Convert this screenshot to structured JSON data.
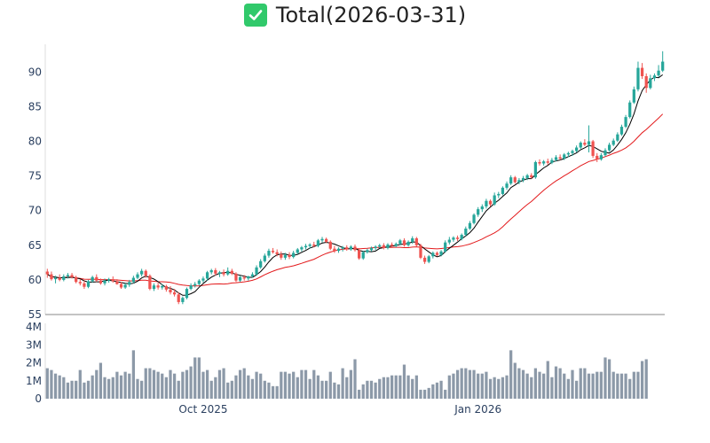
{
  "title": "Total(2026-03-31)",
  "title_icon": "check-mark-icon",
  "colors": {
    "up": "#26a69a",
    "down": "#ef5350",
    "ma_short": "#000000",
    "ma_long": "#e31a1c",
    "volume": "#8c99a8",
    "check_bg": "#31c96b"
  },
  "chart_data": [
    {
      "type": "candlestick",
      "title": "Total(2026-03-31)",
      "ylim": [
        55,
        94
      ],
      "yticks": [
        55,
        60,
        65,
        70,
        75,
        80,
        85,
        90
      ],
      "grid": false,
      "note": "daily OHLC, 151 sessions Aug 2025 – Mar 2026, with two moving averages",
      "ohlc": [
        [
          61.2,
          61.6,
          60.3,
          60.8
        ],
        [
          60.8,
          61.2,
          59.9,
          60.1
        ],
        [
          60.1,
          60.6,
          59.5,
          60.3
        ],
        [
          60.3,
          60.8,
          59.8,
          60.0
        ],
        [
          60.0,
          60.8,
          59.8,
          60.5
        ],
        [
          60.5,
          61.0,
          60.2,
          60.7
        ],
        [
          60.7,
          61.0,
          60.2,
          60.4
        ],
        [
          60.4,
          60.6,
          59.5,
          59.7
        ],
        [
          59.7,
          60.1,
          59.2,
          59.5
        ],
        [
          59.5,
          59.9,
          58.7,
          59.0
        ],
        [
          59.0,
          60.0,
          58.8,
          59.8
        ],
        [
          59.8,
          60.6,
          59.6,
          60.4
        ],
        [
          60.4,
          60.8,
          59.7,
          59.9
        ],
        [
          59.9,
          60.2,
          59.3,
          59.5
        ],
        [
          59.5,
          60.2,
          59.2,
          59.9
        ],
        [
          59.9,
          60.3,
          59.6,
          60.1
        ],
        [
          60.1,
          60.5,
          59.6,
          59.8
        ],
        [
          59.8,
          60.1,
          59.3,
          59.4
        ],
        [
          59.4,
          59.7,
          58.7,
          58.9
        ],
        [
          58.9,
          59.5,
          58.7,
          59.3
        ],
        [
          59.3,
          60.0,
          59.0,
          59.7
        ],
        [
          59.7,
          60.6,
          59.5,
          60.3
        ],
        [
          60.3,
          61.1,
          60.1,
          60.8
        ],
        [
          60.8,
          61.6,
          60.5,
          61.3
        ],
        [
          61.3,
          61.5,
          60.3,
          60.6
        ],
        [
          60.6,
          60.8,
          58.5,
          58.7
        ],
        [
          58.7,
          59.5,
          58.4,
          59.2
        ],
        [
          59.2,
          59.6,
          58.6,
          58.9
        ],
        [
          58.9,
          59.4,
          58.6,
          59.1
        ],
        [
          59.1,
          59.3,
          58.3,
          58.6
        ],
        [
          58.6,
          59.1,
          57.9,
          58.2
        ],
        [
          58.2,
          58.7,
          57.6,
          57.9
        ],
        [
          57.9,
          58.2,
          56.5,
          56.8
        ],
        [
          56.8,
          57.6,
          56.5,
          57.4
        ],
        [
          57.4,
          58.9,
          57.2,
          58.7
        ],
        [
          58.7,
          59.5,
          58.5,
          59.2
        ],
        [
          59.2,
          59.7,
          58.9,
          59.4
        ],
        [
          59.4,
          60.1,
          59.2,
          59.9
        ],
        [
          59.9,
          60.5,
          59.6,
          60.2
        ],
        [
          60.2,
          61.3,
          59.9,
          61.1
        ],
        [
          61.1,
          61.6,
          60.8,
          61.4
        ],
        [
          61.4,
          61.7,
          60.6,
          60.9
        ],
        [
          60.9,
          61.3,
          60.4,
          61.1
        ],
        [
          61.1,
          61.5,
          60.5,
          60.8
        ],
        [
          60.8,
          61.8,
          60.6,
          61.3
        ],
        [
          61.3,
          61.6,
          60.7,
          60.9
        ],
        [
          60.9,
          61.1,
          59.7,
          59.9
        ],
        [
          59.9,
          60.6,
          59.7,
          60.4
        ],
        [
          60.4,
          60.7,
          59.9,
          60.2
        ],
        [
          60.2,
          60.6,
          59.9,
          60.5
        ],
        [
          60.5,
          61.1,
          60.3,
          60.8
        ],
        [
          60.8,
          62.1,
          60.6,
          61.8
        ],
        [
          61.8,
          63.0,
          61.6,
          62.7
        ],
        [
          62.7,
          63.8,
          62.5,
          63.5
        ],
        [
          63.5,
          64.5,
          63.2,
          64.2
        ],
        [
          64.2,
          64.6,
          63.8,
          64.0
        ],
        [
          64.0,
          64.4,
          63.4,
          63.7
        ],
        [
          63.7,
          64.1,
          62.9,
          63.2
        ],
        [
          63.2,
          63.9,
          62.9,
          63.6
        ],
        [
          63.6,
          64.0,
          63.0,
          63.3
        ],
        [
          63.3,
          64.2,
          63.1,
          63.9
        ],
        [
          63.9,
          64.6,
          63.7,
          64.4
        ],
        [
          64.4,
          64.9,
          64.1,
          64.7
        ],
        [
          64.7,
          65.2,
          64.4,
          64.9
        ],
        [
          64.9,
          65.3,
          64.5,
          65.1
        ],
        [
          65.1,
          65.5,
          64.7,
          64.9
        ],
        [
          64.9,
          65.9,
          64.7,
          65.7
        ],
        [
          65.7,
          66.2,
          65.4,
          65.9
        ],
        [
          65.9,
          66.1,
          65.3,
          65.5
        ],
        [
          65.5,
          65.7,
          64.3,
          64.5
        ],
        [
          64.5,
          64.9,
          63.9,
          64.2
        ],
        [
          64.2,
          64.7,
          63.9,
          64.5
        ],
        [
          64.5,
          64.9,
          64.1,
          64.7
        ],
        [
          64.7,
          65.0,
          64.2,
          64.4
        ],
        [
          64.4,
          65.0,
          64.2,
          64.8
        ],
        [
          64.8,
          65.1,
          64.1,
          64.3
        ],
        [
          64.3,
          64.6,
          62.9,
          63.1
        ],
        [
          63.1,
          64.2,
          62.9,
          64.0
        ],
        [
          64.0,
          64.5,
          63.8,
          64.3
        ],
        [
          64.3,
          64.8,
          64.1,
          64.6
        ],
        [
          64.6,
          65.0,
          64.3,
          64.8
        ],
        [
          64.8,
          65.2,
          64.6,
          65.0
        ],
        [
          65.0,
          65.3,
          64.4,
          64.6
        ],
        [
          64.6,
          65.3,
          64.4,
          65.1
        ],
        [
          65.1,
          65.4,
          64.7,
          64.9
        ],
        [
          64.9,
          65.4,
          64.7,
          65.2
        ],
        [
          65.2,
          65.9,
          65.0,
          65.7
        ],
        [
          65.7,
          66.0,
          64.8,
          65.0
        ],
        [
          65.0,
          65.7,
          64.8,
          65.5
        ],
        [
          65.5,
          66.3,
          65.2,
          66.0
        ],
        [
          66.0,
          66.2,
          64.8,
          65.0
        ],
        [
          65.0,
          65.2,
          63.0,
          63.2
        ],
        [
          63.2,
          63.5,
          62.3,
          62.6
        ],
        [
          62.6,
          63.6,
          62.4,
          63.4
        ],
        [
          63.4,
          64.1,
          63.1,
          63.9
        ],
        [
          63.9,
          64.1,
          63.4,
          63.6
        ],
        [
          63.6,
          64.3,
          63.4,
          64.1
        ],
        [
          64.1,
          65.7,
          63.9,
          65.4
        ],
        [
          65.4,
          66.2,
          65.1,
          65.8
        ],
        [
          65.8,
          66.3,
          65.5,
          66.1
        ],
        [
          66.1,
          66.4,
          65.6,
          65.9
        ],
        [
          65.9,
          66.7,
          65.7,
          66.5
        ],
        [
          66.5,
          67.7,
          66.3,
          67.4
        ],
        [
          67.4,
          68.5,
          67.2,
          68.2
        ],
        [
          68.2,
          69.6,
          68.0,
          69.4
        ],
        [
          69.4,
          70.5,
          69.1,
          70.2
        ],
        [
          70.2,
          70.9,
          69.8,
          70.6
        ],
        [
          70.6,
          71.7,
          70.3,
          71.4
        ],
        [
          71.4,
          71.6,
          70.6,
          70.9
        ],
        [
          70.9,
          72.6,
          70.7,
          72.2
        ],
        [
          72.2,
          72.7,
          71.8,
          72.4
        ],
        [
          72.4,
          73.5,
          72.2,
          73.3
        ],
        [
          73.3,
          74.2,
          73.0,
          73.9
        ],
        [
          73.9,
          75.1,
          73.7,
          74.8
        ],
        [
          74.8,
          75.0,
          73.9,
          74.1
        ],
        [
          74.1,
          74.7,
          73.8,
          74.4
        ],
        [
          74.4,
          75.0,
          74.1,
          74.7
        ],
        [
          74.7,
          75.3,
          74.4,
          75.1
        ],
        [
          75.1,
          75.4,
          74.6,
          74.8
        ],
        [
          74.8,
          77.2,
          74.6,
          77.0
        ],
        [
          77.0,
          77.4,
          76.5,
          76.8
        ],
        [
          76.8,
          77.3,
          76.5,
          77.1
        ],
        [
          77.1,
          77.5,
          76.6,
          76.9
        ],
        [
          76.9,
          77.6,
          76.7,
          77.3
        ],
        [
          77.3,
          78.0,
          77.1,
          77.7
        ],
        [
          77.7,
          78.1,
          77.3,
          77.5
        ],
        [
          77.5,
          78.3,
          77.3,
          78.1
        ],
        [
          78.1,
          78.5,
          77.7,
          78.3
        ],
        [
          78.3,
          78.8,
          77.9,
          78.6
        ],
        [
          78.6,
          79.4,
          78.4,
          79.1
        ],
        [
          79.1,
          80.0,
          78.9,
          79.8
        ],
        [
          79.8,
          80.3,
          79.3,
          79.5
        ],
        [
          79.5,
          82.3,
          78.4,
          80.0
        ],
        [
          80.0,
          80.2,
          77.6,
          77.9
        ],
        [
          77.9,
          78.3,
          77.0,
          77.4
        ],
        [
          77.4,
          78.3,
          77.2,
          78.0
        ],
        [
          78.0,
          79.0,
          77.8,
          78.7
        ],
        [
          78.7,
          79.8,
          78.5,
          79.5
        ],
        [
          79.5,
          80.4,
          79.3,
          80.1
        ],
        [
          80.1,
          81.3,
          79.9,
          81.0
        ],
        [
          81.0,
          82.4,
          80.8,
          82.1
        ],
        [
          82.1,
          83.8,
          81.9,
          83.5
        ],
        [
          83.5,
          85.9,
          83.3,
          85.6
        ],
        [
          85.6,
          87.9,
          85.4,
          87.5
        ],
        [
          87.5,
          91.5,
          87.2,
          90.6
        ],
        [
          90.6,
          91.3,
          89.0,
          89.4
        ],
        [
          89.4,
          89.8,
          87.0,
          87.7
        ],
        [
          87.7,
          89.6,
          87.5,
          89.1
        ],
        [
          89.1,
          89.8,
          88.7,
          89.5
        ],
        [
          89.5,
          91.0,
          89.3,
          90.2
        ],
        [
          90.2,
          93.0,
          90.0,
          91.5
        ]
      ]
    },
    {
      "type": "bar",
      "title": "",
      "ylim": [
        0,
        4.2
      ],
      "yticks": [
        0,
        1,
        2,
        3,
        4
      ],
      "ytick_labels": [
        "0",
        "1M",
        "2M",
        "3M",
        "4M"
      ],
      "xtick_labels": [
        {
          "index": 38,
          "label": "Oct 2025"
        },
        {
          "index": 105,
          "label": "Jan 2026"
        }
      ],
      "volume_m": [
        1.7,
        1.6,
        1.4,
        1.3,
        1.2,
        0.9,
        1.0,
        1.0,
        1.6,
        0.9,
        1.0,
        1.3,
        1.6,
        2.0,
        1.2,
        1.1,
        1.2,
        1.5,
        1.3,
        1.5,
        1.4,
        2.7,
        1.1,
        1.0,
        1.7,
        1.7,
        1.6,
        1.5,
        1.4,
        1.2,
        1.6,
        1.4,
        1.0,
        1.5,
        1.6,
        1.8,
        2.3,
        2.3,
        1.5,
        1.6,
        1.0,
        1.2,
        1.6,
        1.7,
        0.9,
        1.0,
        1.3,
        1.6,
        1.7,
        1.3,
        1.1,
        1.5,
        1.4,
        1.0,
        0.9,
        0.7,
        0.7,
        1.5,
        1.5,
        1.4,
        1.5,
        1.2,
        1.6,
        1.6,
        1.1,
        1.6,
        1.3,
        1.0,
        1.0,
        1.5,
        0.9,
        0.8,
        1.7,
        1.2,
        1.6,
        2.2,
        0.5,
        0.8,
        1.0,
        1.0,
        0.9,
        1.1,
        1.2,
        1.2,
        1.3,
        1.3,
        1.3,
        1.9,
        1.3,
        1.1,
        1.3,
        0.5,
        0.5,
        0.6,
        0.8,
        0.9,
        1.0,
        0.5,
        1.3,
        1.4,
        1.6,
        1.7,
        1.7,
        1.6,
        1.6,
        1.4,
        1.4,
        1.5,
        1.1,
        1.2,
        1.1,
        1.2,
        1.3,
        2.7,
        2.0,
        1.7,
        1.6,
        1.4,
        1.2,
        1.7,
        1.5,
        1.4,
        2.1,
        1.2,
        1.8,
        1.7,
        1.4,
        1.1,
        1.6,
        1.0,
        1.7,
        1.7,
        1.4,
        1.4,
        1.5,
        1.5,
        2.3,
        2.2,
        1.5,
        1.4,
        1.4,
        1.4,
        1.1,
        1.5,
        1.5,
        2.1,
        2.2
      ],
      "volume_colors": "by candle direction"
    }
  ]
}
